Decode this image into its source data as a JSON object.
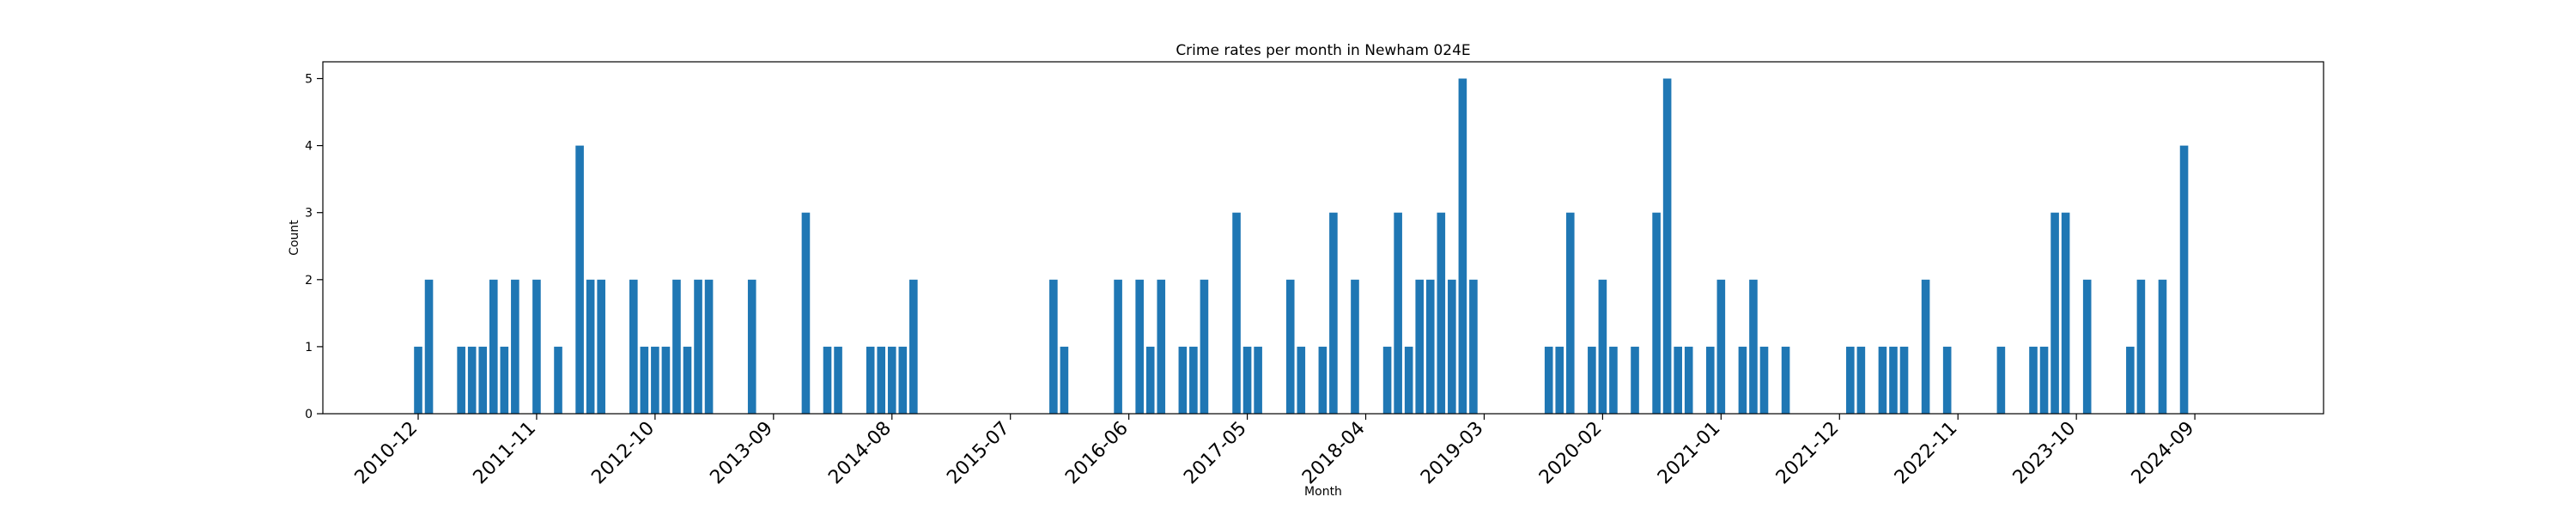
{
  "chart_data": {
    "type": "bar",
    "title": "Crime rates per month in Newham 024E",
    "xlabel": "Month",
    "ylabel": "Count",
    "ylim": [
      0,
      5.25
    ],
    "yticks": [
      0,
      1,
      2,
      3,
      4,
      5
    ],
    "grid": false,
    "bar_color": "#1f77b4",
    "xticks": [
      "2010-12",
      "2011-11",
      "2012-10",
      "2013-09",
      "2014-08",
      "2015-07",
      "2016-06",
      "2017-05",
      "2018-04",
      "2019-03",
      "2020-02",
      "2021-01",
      "2021-12",
      "2022-11",
      "2023-10",
      "2024-09"
    ],
    "points": [
      [
        "2010-12",
        1
      ],
      [
        "2011-01",
        2
      ],
      [
        "2011-04",
        1
      ],
      [
        "2011-05",
        1
      ],
      [
        "2011-06",
        1
      ],
      [
        "2011-07",
        2
      ],
      [
        "2011-08",
        1
      ],
      [
        "2011-09",
        2
      ],
      [
        "2011-11",
        2
      ],
      [
        "2012-01",
        1
      ],
      [
        "2012-03",
        4
      ],
      [
        "2012-04",
        2
      ],
      [
        "2012-05",
        2
      ],
      [
        "2012-08",
        2
      ],
      [
        "2012-09",
        1
      ],
      [
        "2012-10",
        1
      ],
      [
        "2012-11",
        1
      ],
      [
        "2012-12",
        2
      ],
      [
        "2013-01",
        1
      ],
      [
        "2013-02",
        2
      ],
      [
        "2013-03",
        2
      ],
      [
        "2013-07",
        2
      ],
      [
        "2013-12",
        3
      ],
      [
        "2014-02",
        1
      ],
      [
        "2014-03",
        1
      ],
      [
        "2014-06",
        1
      ],
      [
        "2014-07",
        1
      ],
      [
        "2014-08",
        1
      ],
      [
        "2014-09",
        1
      ],
      [
        "2014-10",
        2
      ],
      [
        "2015-11",
        2
      ],
      [
        "2015-12",
        1
      ],
      [
        "2016-05",
        2
      ],
      [
        "2016-07",
        2
      ],
      [
        "2016-08",
        1
      ],
      [
        "2016-09",
        2
      ],
      [
        "2016-11",
        1
      ],
      [
        "2016-12",
        1
      ],
      [
        "2017-01",
        2
      ],
      [
        "2017-04",
        3
      ],
      [
        "2017-05",
        1
      ],
      [
        "2017-06",
        1
      ],
      [
        "2017-09",
        2
      ],
      [
        "2017-10",
        1
      ],
      [
        "2017-12",
        1
      ],
      [
        "2018-01",
        3
      ],
      [
        "2018-03",
        2
      ],
      [
        "2018-06",
        1
      ],
      [
        "2018-07",
        3
      ],
      [
        "2018-08",
        1
      ],
      [
        "2018-09",
        2
      ],
      [
        "2018-10",
        2
      ],
      [
        "2018-11",
        3
      ],
      [
        "2018-12",
        2
      ],
      [
        "2019-01",
        5
      ],
      [
        "2019-02",
        2
      ],
      [
        "2019-09",
        1
      ],
      [
        "2019-10",
        1
      ],
      [
        "2019-11",
        3
      ],
      [
        "2020-01",
        1
      ],
      [
        "2020-02",
        2
      ],
      [
        "2020-03",
        1
      ],
      [
        "2020-05",
        1
      ],
      [
        "2020-07",
        3
      ],
      [
        "2020-08",
        5
      ],
      [
        "2020-09",
        1
      ],
      [
        "2020-10",
        1
      ],
      [
        "2020-12",
        1
      ],
      [
        "2021-01",
        2
      ],
      [
        "2021-03",
        1
      ],
      [
        "2021-04",
        2
      ],
      [
        "2021-05",
        1
      ],
      [
        "2021-07",
        1
      ],
      [
        "2022-01",
        1
      ],
      [
        "2022-02",
        1
      ],
      [
        "2022-04",
        1
      ],
      [
        "2022-05",
        1
      ],
      [
        "2022-06",
        1
      ],
      [
        "2022-08",
        2
      ],
      [
        "2022-10",
        1
      ],
      [
        "2023-03",
        1
      ],
      [
        "2023-06",
        1
      ],
      [
        "2023-07",
        1
      ],
      [
        "2023-08",
        3
      ],
      [
        "2023-09",
        3
      ],
      [
        "2023-11",
        2
      ],
      [
        "2024-03",
        1
      ],
      [
        "2024-04",
        2
      ],
      [
        "2024-06",
        2
      ],
      [
        "2024-08",
        4
      ]
    ]
  }
}
